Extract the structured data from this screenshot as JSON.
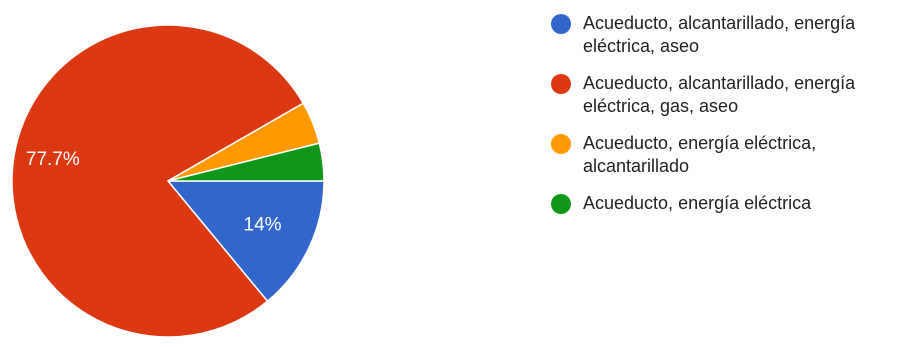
{
  "chart_data": {
    "type": "pie",
    "title": "",
    "categories": [
      "Acueducto, alcantarillado, energía eléctrica, aseo",
      "Acueducto, alcantarillado, energía eléctrica, gas, aseo",
      "Acueducto, energía eléctrica, alcantarillado",
      "Acueducto, energía eléctrica"
    ],
    "values": [
      14,
      77.7,
      4.4,
      3.9
    ],
    "value_labels": [
      "14%",
      "77.7%",
      "",
      ""
    ],
    "colors": [
      "#3366CC",
      "#DC3912",
      "#FF9900",
      "#109618"
    ],
    "legend_position": "right"
  }
}
